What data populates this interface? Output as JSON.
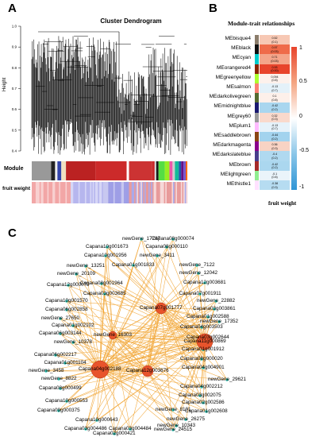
{
  "panels": {
    "a": "A",
    "b": "B",
    "c": "C"
  },
  "dendrogram": {
    "title": "Cluster Dendrogram",
    "ylabel": "Height",
    "yticks": [
      "1.0",
      "0.9",
      "0.8",
      "0.7",
      "0.6",
      "0.5",
      "0.4"
    ],
    "module_label": "Module",
    "trait_label": "fruit weight",
    "module_colors": [
      "#999999",
      "#222222",
      "#eeeeee",
      "#3344aa",
      "#f0e0c0",
      "#bb2222",
      "#cc2a2a",
      "#ffffff",
      "#cc3333",
      "#c82828",
      "#dddddd",
      "#1a1a1a",
      "#55dd44",
      "#99ee22",
      "#ee55aa",
      "#cccccc",
      "#11bb99",
      "#2255aa",
      "#661188",
      "#7755cc",
      "#ff6600"
    ]
  },
  "module_trait": {
    "title": "Module-trait relationships",
    "xlabel": "fruit weight",
    "colorbar_ticks": [
      "1",
      "0.5",
      "0",
      "-0.5",
      "-1"
    ],
    "rows": [
      {
        "name": "MEbisque4",
        "swatch": "#8b7d6b",
        "r": "0.52",
        "p": "(0.1)",
        "fill": "#f7c8b4"
      },
      {
        "name": "MEblack",
        "swatch": "#111111",
        "r": "0.97",
        "p": "(0.03)",
        "fill": "#ef6b4a"
      },
      {
        "name": "MEcyan",
        "swatch": "#00cccc",
        "r": "0.71",
        "p": "(0.03)",
        "fill": "#f4a58a"
      },
      {
        "name": "MEorangered4",
        "swatch": "#8b2500",
        "r": "0.93",
        "p": "(0.00)",
        "fill": "#e8442c"
      },
      {
        "name": "MEgreenyellow",
        "swatch": "#adff2f",
        "r": "0.094",
        "p": "(0.8)",
        "fill": "#fdf1ec"
      },
      {
        "name": "MEsalmon",
        "swatch": "#fa8072",
        "r": "-0.13",
        "p": "(0.7)",
        "fill": "#e4f1f9"
      },
      {
        "name": "MEdarkolivegreen",
        "swatch": "#556b2f",
        "r": "0.1",
        "p": "(0.8)",
        "fill": "#fdf0ea"
      },
      {
        "name": "MEmidnightblue",
        "swatch": "#191970",
        "r": "-0.42",
        "p": "(0.2)",
        "fill": "#a9d6ef"
      },
      {
        "name": "MEgrey60",
        "swatch": "#999999",
        "r": "0.32",
        "p": "(0.3)",
        "fill": "#f9d9cc"
      },
      {
        "name": "MEplum1",
        "swatch": "#ffbbff",
        "r": "-0.13",
        "p": "(0.7)",
        "fill": "#e6f2fa"
      },
      {
        "name": "MEsaddlebrown",
        "swatch": "#8b4513",
        "r": "-0.44",
        "p": "(0.2)",
        "fill": "#a3d3ee"
      },
      {
        "name": "MEdarkmagenta",
        "swatch": "#8b008b",
        "r": "0.36",
        "p": "(0.3)",
        "fill": "#f8d3c4"
      },
      {
        "name": "MEdarkslateblue",
        "swatch": "#483d8b",
        "r": "-0.4",
        "p": "(0.2)",
        "fill": "#b0d9f0"
      },
      {
        "name": "MEbrown",
        "swatch": "#a52a2a",
        "r": "-0.42",
        "p": "(0.2)",
        "fill": "#abd7ef"
      },
      {
        "name": "MElightgreen",
        "swatch": "#90ee90",
        "r": "-0.1",
        "p": "(0.8)",
        "fill": "#eaf4fa"
      },
      {
        "name": "MEthistle1",
        "swatch": "#ffe1ff",
        "r": "-0.38",
        "p": "(0.3)",
        "fill": "#b6dcf1"
      }
    ]
  },
  "network": {
    "edge_color": "#f2a83a",
    "hub_color": "#e8542c",
    "leaf_color": "#2ec4b6",
    "hubs": [
      "Capana04g002188",
      "Capana11g000869",
      "Capana07g001777",
      "Capana12g003676",
      "newGene_16303"
    ],
    "leaves": [
      "newGene_17787",
      "Capana08g000074",
      "Capana10g001673",
      "Capana08g000110",
      "Capana10g001956",
      "newGene_3411",
      "Capana01g001833",
      "newGene_7122",
      "newGene_13251",
      "newGene_12042",
      "Capana12g003681",
      "newGene_20109",
      "Capana08g001964",
      "Capana12g000079",
      "Capana03g003685",
      "Capana07g001911",
      "Capana10g001570",
      "newGene_22882",
      "Capana03g003861",
      "Capana06g002858",
      "Capana01g002588",
      "newGene_27650",
      "Capana04g003503",
      "Capana01g002102",
      "newGene_17352",
      "Capana06g003144",
      "Capana03g002644",
      "newGene_10378",
      "Capana01g001912",
      "Capana06g002217",
      "Capana08g000020",
      "Capana01g001104",
      "Capana04g004901",
      "newGene_3458",
      "newGene_29621",
      "newGene_8822",
      "Capana04g002212",
      "Capana08g000499",
      "Capana03g002075",
      "Capana10g000553",
      "Capana02g002586",
      "Capana09g000375",
      "Capana10g000643",
      "Capana01g002608",
      "Capana03g004486",
      "newGene_10343",
      "Capana03g004484",
      "newGene_8101",
      "Capana02g000421",
      "newGene_26275",
      "newGene_24515"
    ]
  }
}
